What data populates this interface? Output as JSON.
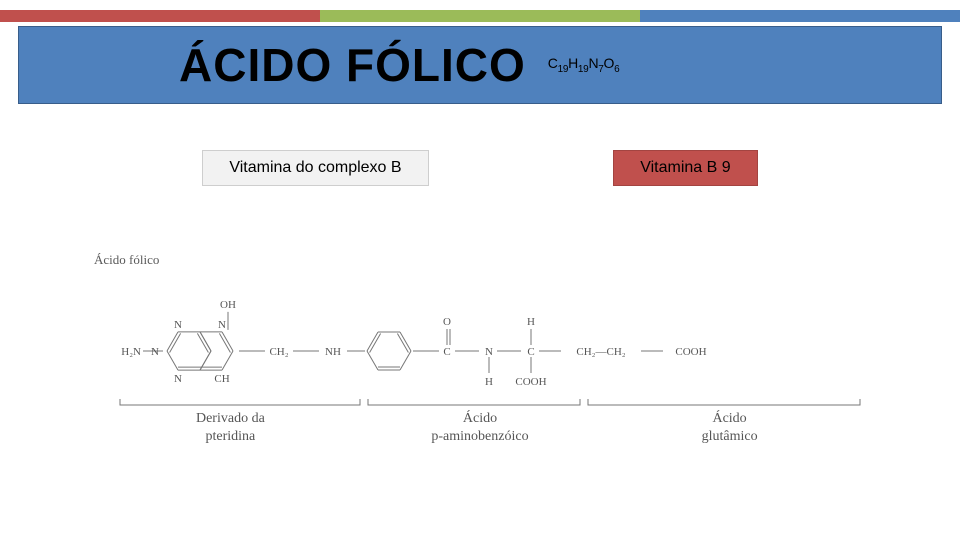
{
  "accent_colors": [
    "#c0504d",
    "#9bbb59",
    "#4f81bd"
  ],
  "header": {
    "bg": "#4f81bd",
    "title": "ÁCIDO FÓLICO",
    "formula_parts": [
      "C",
      "19",
      "H",
      "19",
      "N",
      "7",
      "O",
      "6"
    ]
  },
  "badges": [
    {
      "label": "Vitamina do complexo B",
      "bg": "#f2f2f2"
    },
    {
      "label": "Vitamina B 9",
      "bg": "#c0504d"
    }
  ],
  "diagram": {
    "title": "Ácido fólico",
    "stroke": "#777777",
    "text_color": "#555555",
    "parts": [
      {
        "label": "Derivado da\npteridina"
      },
      {
        "label": "Ácido\np-aminobenzóico"
      },
      {
        "label": "Ácido\nglutâmico"
      }
    ],
    "atoms": {
      "OH": "OH",
      "N": "N",
      "CH": "CH",
      "H2N": "H₂N",
      "CH2": "CH₂",
      "NH": "NH",
      "C": "C",
      "O": "O",
      "H": "H",
      "COOH": "COOH",
      "CH2CH2": "CH₂—CH₂"
    }
  }
}
